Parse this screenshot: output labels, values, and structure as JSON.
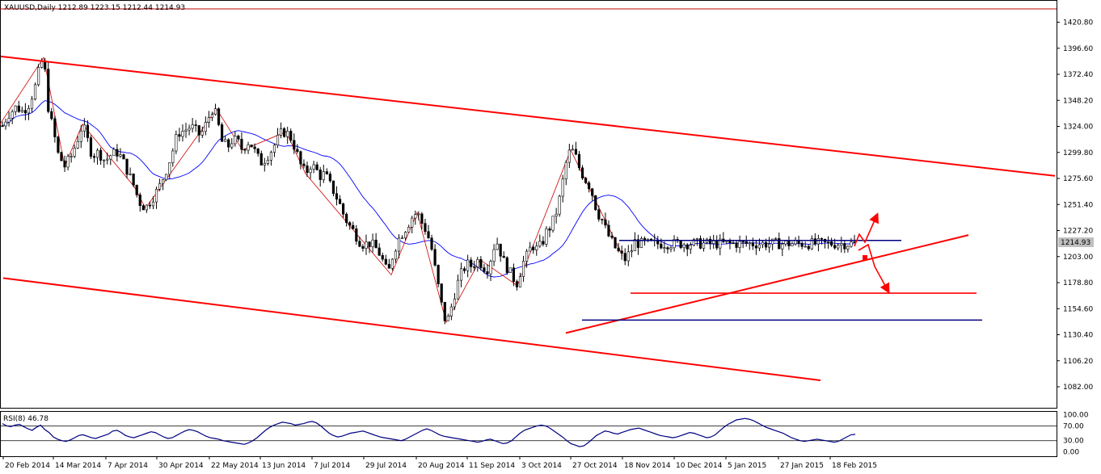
{
  "chart_data": {
    "type": "candlestick",
    "title": "XAUUSD,Daily  1212.89 1223.15 1212.44 1214.93",
    "current_price_label": "1214.93",
    "ylim": [
      1058,
      1444
    ],
    "y_ticks": [
      "1420.80",
      "1396.60",
      "1372.40",
      "1348.20",
      "1324.00",
      "1299.80",
      "1275.60",
      "1251.40",
      "1227.20",
      "1203.00",
      "1178.80",
      "1154.60",
      "1130.40",
      "1106.20",
      "1082.00"
    ],
    "x_ticks": [
      "20 Feb 2014",
      "14 Mar 2014",
      "7 Apr 2014",
      "30 Apr 2014",
      "22 May 2014",
      "13 Jun 2014",
      "7 Jul 2014",
      "29 Jul 2014",
      "20 Aug 2014",
      "11 Sep 2014",
      "3 Oct 2014",
      "27 Oct 2014",
      "18 Nov 2014",
      "10 Dec 2014",
      "5 Jan 2015",
      "27 Jan 2015",
      "18 Feb 2015"
    ],
    "n_bars": 261,
    "price_path": [
      [
        0,
        1320
      ],
      [
        10,
        1335
      ],
      [
        20,
        1342
      ],
      [
        28,
        1338
      ],
      [
        36,
        1345
      ],
      [
        44,
        1362
      ],
      [
        50,
        1382
      ],
      [
        54,
        1388
      ],
      [
        60,
        1340
      ],
      [
        66,
        1320
      ],
      [
        72,
        1298
      ],
      [
        80,
        1287
      ],
      [
        88,
        1296
      ],
      [
        96,
        1312
      ],
      [
        102,
        1326
      ],
      [
        108,
        1312
      ],
      [
        114,
        1297
      ],
      [
        122,
        1300
      ],
      [
        130,
        1292
      ],
      [
        138,
        1298
      ],
      [
        146,
        1300
      ],
      [
        152,
        1292
      ],
      [
        158,
        1282
      ],
      [
        166,
        1268
      ],
      [
        172,
        1254
      ],
      [
        180,
        1248
      ],
      [
        188,
        1257
      ],
      [
        196,
        1266
      ],
      [
        204,
        1280
      ],
      [
        212,
        1297
      ],
      [
        220,
        1318
      ],
      [
        228,
        1320
      ],
      [
        236,
        1324
      ],
      [
        242,
        1320
      ],
      [
        248,
        1315
      ],
      [
        256,
        1328
      ],
      [
        262,
        1340
      ],
      [
        268,
        1334
      ],
      [
        274,
        1310
      ],
      [
        282,
        1305
      ],
      [
        288,
        1312
      ],
      [
        294,
        1310
      ],
      [
        300,
        1302
      ],
      [
        306,
        1310
      ],
      [
        312,
        1306
      ],
      [
        318,
        1296
      ],
      [
        324,
        1290
      ],
      [
        330,
        1296
      ],
      [
        336,
        1302
      ],
      [
        342,
        1310
      ],
      [
        348,
        1318
      ],
      [
        354,
        1319
      ],
      [
        360,
        1313
      ],
      [
        366,
        1302
      ],
      [
        372,
        1288
      ],
      [
        378,
        1280
      ],
      [
        384,
        1288
      ],
      [
        390,
        1285
      ],
      [
        396,
        1278
      ],
      [
        402,
        1280
      ],
      [
        408,
        1270
      ],
      [
        414,
        1262
      ],
      [
        420,
        1252
      ],
      [
        426,
        1240
      ],
      [
        432,
        1232
      ],
      [
        438,
        1226
      ],
      [
        444,
        1218
      ],
      [
        450,
        1214
      ],
      [
        456,
        1216
      ],
      [
        462,
        1213
      ],
      [
        468,
        1208
      ],
      [
        474,
        1198
      ],
      [
        480,
        1186
      ],
      [
        486,
        1205
      ],
      [
        492,
        1218
      ],
      [
        498,
        1225
      ],
      [
        504,
        1232
      ],
      [
        510,
        1240
      ],
      [
        516,
        1244
      ],
      [
        522,
        1234
      ],
      [
        528,
        1226
      ],
      [
        534,
        1210
      ],
      [
        540,
        1184
      ],
      [
        544,
        1168
      ],
      [
        548,
        1150
      ],
      [
        552,
        1142
      ],
      [
        556,
        1148
      ],
      [
        560,
        1162
      ],
      [
        566,
        1178
      ],
      [
        572,
        1190
      ],
      [
        578,
        1196
      ],
      [
        584,
        1194
      ],
      [
        590,
        1200
      ],
      [
        596,
        1196
      ],
      [
        602,
        1190
      ],
      [
        606,
        1198
      ],
      [
        610,
        1210
      ],
      [
        614,
        1218
      ],
      [
        618,
        1210
      ],
      [
        622,
        1200
      ],
      [
        628,
        1192
      ],
      [
        634,
        1184
      ],
      [
        640,
        1178
      ],
      [
        646,
        1196
      ],
      [
        652,
        1204
      ],
      [
        658,
        1214
      ],
      [
        664,
        1210
      ],
      [
        670,
        1214
      ],
      [
        676,
        1226
      ],
      [
        682,
        1232
      ],
      [
        688,
        1244
      ],
      [
        694,
        1262
      ],
      [
        698,
        1282
      ],
      [
        702,
        1296
      ],
      [
        706,
        1302
      ],
      [
        710,
        1300
      ],
      [
        714,
        1292
      ],
      [
        718,
        1282
      ],
      [
        722,
        1278
      ],
      [
        726,
        1272
      ],
      [
        730,
        1268
      ],
      [
        734,
        1258
      ],
      [
        738,
        1246
      ],
      [
        742,
        1240
      ],
      [
        746,
        1236
      ],
      [
        750,
        1226
      ],
      [
        756,
        1218
      ],
      [
        762,
        1210
      ],
      [
        768,
        1204
      ],
      [
        774,
        1200
      ],
      [
        778,
        1206
      ],
      [
        782,
        1210
      ],
      [
        786,
        1218
      ],
      [
        790,
        1215
      ]
    ],
    "moving_average": "blue",
    "trend_lines": [
      {
        "color": "#ff0000",
        "from": [
          1,
          1389
        ],
        "to": [
          1305,
          1278
        ]
      },
      {
        "color": "#ff0000",
        "from": [
          4,
          1183
        ],
        "to": [
          1015,
          1088
        ]
      },
      {
        "color": "#ff0000",
        "from": [
          700,
          1132
        ],
        "to": [
          1198,
          1223
        ]
      }
    ],
    "horizontal_levels": [
      {
        "color": "#000080",
        "price": 1218,
        "x_from": 766,
        "x_to": 1115
      },
      {
        "color": "#000080",
        "price": 1144,
        "x_from": 720,
        "x_to": 1215
      },
      {
        "color": "#ff0000",
        "price": 1169,
        "x_from": 780,
        "x_to": 1208
      }
    ],
    "rsi": {
      "label": "RSI(8) 46.78",
      "value": 46.78,
      "levels": [
        "100.00",
        "70.00",
        "30.00",
        "0.00"
      ],
      "values": [
        76,
        70,
        68,
        72,
        74,
        68,
        62,
        58,
        66,
        72,
        60,
        52,
        40,
        34,
        30,
        28,
        32,
        38,
        44,
        46,
        42,
        38,
        36,
        40,
        44,
        48,
        56,
        58,
        52,
        44,
        40,
        38,
        42,
        46,
        50,
        54,
        52,
        46,
        40,
        36,
        38,
        44,
        50,
        56,
        60,
        58,
        54,
        48,
        42,
        38,
        36,
        34,
        30,
        28,
        26,
        24,
        22,
        20,
        24,
        30,
        38,
        48,
        58,
        66,
        72,
        76,
        80,
        78,
        76,
        72,
        74,
        76,
        80,
        82,
        78,
        70,
        60,
        50,
        44,
        40,
        42,
        46,
        50,
        52,
        54,
        56,
        52,
        48,
        44,
        40,
        38,
        36,
        34,
        32,
        30,
        34,
        40,
        46,
        52,
        58,
        62,
        58,
        52,
        46,
        42,
        40,
        38,
        36,
        34,
        32,
        30,
        28,
        26,
        28,
        32,
        34,
        30,
        26,
        22,
        24,
        30,
        40,
        50,
        58,
        62,
        66,
        70,
        72,
        70,
        64,
        56,
        48,
        40,
        30,
        22,
        18,
        14,
        16,
        24,
        34,
        44,
        50,
        56,
        54,
        50,
        48,
        52,
        56,
        60,
        62,
        64,
        60,
        56,
        52,
        48,
        44,
        42,
        40,
        38,
        40,
        44,
        48,
        52,
        50,
        46,
        42,
        38,
        40,
        46,
        56,
        66,
        74,
        80,
        86,
        88,
        90,
        88,
        84,
        78,
        72,
        66,
        62,
        58,
        54,
        50,
        44,
        38,
        34,
        30,
        28,
        30,
        32,
        34,
        32,
        30,
        28,
        26,
        28,
        34,
        40,
        46,
        47
      ]
    },
    "annotation_arrows": [
      {
        "color": "#ff0000",
        "from": [
          1057,
          290
        ],
        "to": [
          1085,
          265
        ]
      },
      {
        "color": "#ff0000",
        "from": [
          1072,
          322
        ],
        "to": [
          1100,
          362
        ]
      }
    ]
  }
}
